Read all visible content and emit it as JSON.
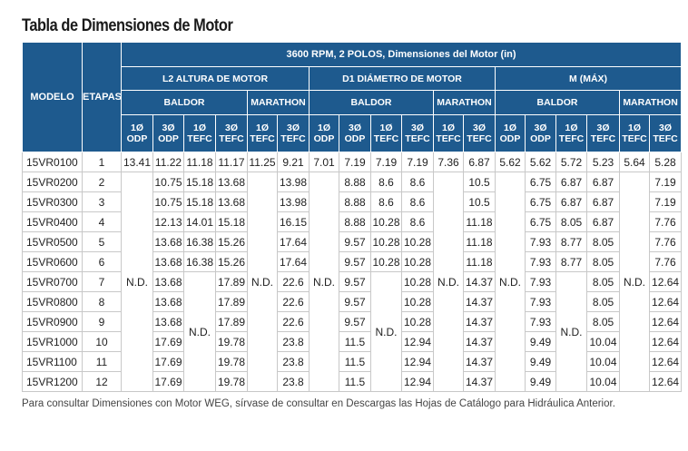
{
  "title": "Tabla de Dimensiones de Motor",
  "header": {
    "model_col": "MODELO",
    "stages_col": "ETAPAS",
    "top": "3600 RPM, 2 POLOS, Dimensiones del Motor (in)",
    "groups": [
      "L2 ALTURA DE MOTOR",
      "D1 DIÁMETRO DE MOTOR",
      "M (MÁX)"
    ],
    "brands": {
      "baldor": "BALDOR",
      "marathon": "MARATHON"
    },
    "phase_top": {
      "p1": "1Ø",
      "p3": "3Ø"
    },
    "types": {
      "odp": "ODP",
      "tefc": "TEFC"
    }
  },
  "nd": "N.D.",
  "rows": [
    {
      "model": "15VR0100",
      "stages": "1",
      "l2_baldor": [
        "13.41",
        "11.22",
        "11.18",
        "11.17"
      ],
      "l2_marathon": [
        "11.25",
        "9.21"
      ],
      "d1_baldor": [
        "7.01",
        "7.19",
        "7.19",
        "7.19"
      ],
      "d1_marathon": [
        "7.36",
        "6.87"
      ],
      "m_baldor": [
        "5.62",
        "5.62",
        "5.72",
        "5.23"
      ],
      "m_marathon": [
        "5.64",
        "5.28"
      ]
    },
    {
      "model": "15VR0200",
      "stages": "2",
      "l2_baldor": [
        "",
        "10.75",
        "15.18",
        "13.68"
      ],
      "l2_marathon": [
        "",
        "13.98"
      ],
      "d1_baldor": [
        "",
        "8.88",
        "8.6",
        "8.6"
      ],
      "d1_marathon": [
        "",
        "10.5"
      ],
      "m_baldor": [
        "",
        "6.75",
        "6.87",
        "6.87"
      ],
      "m_marathon": [
        "",
        "7.19"
      ]
    },
    {
      "model": "15VR0300",
      "stages": "3",
      "l2_baldor": [
        "",
        "10.75",
        "15.18",
        "13.68"
      ],
      "l2_marathon": [
        "",
        "13.98"
      ],
      "d1_baldor": [
        "",
        "8.88",
        "8.6",
        "8.6"
      ],
      "d1_marathon": [
        "",
        "10.5"
      ],
      "m_baldor": [
        "",
        "6.75",
        "6.87",
        "6.87"
      ],
      "m_marathon": [
        "",
        "7.19"
      ]
    },
    {
      "model": "15VR0400",
      "stages": "4",
      "l2_baldor": [
        "",
        "12.13",
        "14.01",
        "15.18"
      ],
      "l2_marathon": [
        "",
        "16.15"
      ],
      "d1_baldor": [
        "",
        "8.88",
        "10.28",
        "8.6"
      ],
      "d1_marathon": [
        "",
        "11.18"
      ],
      "m_baldor": [
        "",
        "6.75",
        "8.05",
        "6.87"
      ],
      "m_marathon": [
        "",
        "7.76"
      ]
    },
    {
      "model": "15VR0500",
      "stages": "5",
      "l2_baldor": [
        "",
        "13.68",
        "16.38",
        "15.26"
      ],
      "l2_marathon": [
        "",
        "17.64"
      ],
      "d1_baldor": [
        "",
        "9.57",
        "10.28",
        "10.28"
      ],
      "d1_marathon": [
        "",
        "11.18"
      ],
      "m_baldor": [
        "",
        "7.93",
        "8.77",
        "8.05"
      ],
      "m_marathon": [
        "",
        "7.76"
      ]
    },
    {
      "model": "15VR0600",
      "stages": "6",
      "l2_baldor": [
        "",
        "13.68",
        "16.38",
        "15.26"
      ],
      "l2_marathon": [
        "",
        "17.64"
      ],
      "d1_baldor": [
        "",
        "9.57",
        "10.28",
        "10.28"
      ],
      "d1_marathon": [
        "",
        "11.18"
      ],
      "m_baldor": [
        "",
        "7.93",
        "8.77",
        "8.05"
      ],
      "m_marathon": [
        "",
        "7.76"
      ]
    },
    {
      "model": "15VR0700",
      "stages": "7",
      "l2_baldor": [
        "",
        "13.68",
        "",
        "17.89"
      ],
      "l2_marathon": [
        "",
        "22.6"
      ],
      "d1_baldor": [
        "",
        "9.57",
        "",
        "10.28"
      ],
      "d1_marathon": [
        "",
        "14.37"
      ],
      "m_baldor": [
        "",
        "7.93",
        "",
        "8.05"
      ],
      "m_marathon": [
        "",
        "12.64"
      ]
    },
    {
      "model": "15VR0800",
      "stages": "8",
      "l2_baldor": [
        "",
        "13.68",
        "",
        "17.89"
      ],
      "l2_marathon": [
        "",
        "22.6"
      ],
      "d1_baldor": [
        "",
        "9.57",
        "",
        "10.28"
      ],
      "d1_marathon": [
        "",
        "14.37"
      ],
      "m_baldor": [
        "",
        "7.93",
        "",
        "8.05"
      ],
      "m_marathon": [
        "",
        "12.64"
      ]
    },
    {
      "model": "15VR0900",
      "stages": "9",
      "l2_baldor": [
        "",
        "13.68",
        "",
        "17.89"
      ],
      "l2_marathon": [
        "",
        "22.6"
      ],
      "d1_baldor": [
        "",
        "9.57",
        "",
        "10.28"
      ],
      "d1_marathon": [
        "",
        "14.37"
      ],
      "m_baldor": [
        "",
        "7.93",
        "",
        "8.05"
      ],
      "m_marathon": [
        "",
        "12.64"
      ]
    },
    {
      "model": "15VR1000",
      "stages": "10",
      "l2_baldor": [
        "",
        "17.69",
        "",
        "19.78"
      ],
      "l2_marathon": [
        "",
        "23.8"
      ],
      "d1_baldor": [
        "",
        "11.5",
        "",
        "12.94"
      ],
      "d1_marathon": [
        "",
        "14.37"
      ],
      "m_baldor": [
        "",
        "9.49",
        "",
        "10.04"
      ],
      "m_marathon": [
        "",
        "12.64"
      ]
    },
    {
      "model": "15VR1100",
      "stages": "11",
      "l2_baldor": [
        "",
        "17.69",
        "",
        "19.78"
      ],
      "l2_marathon": [
        "",
        "23.8"
      ],
      "d1_baldor": [
        "",
        "11.5",
        "",
        "12.94"
      ],
      "d1_marathon": [
        "",
        "14.37"
      ],
      "m_baldor": [
        "",
        "9.49",
        "",
        "10.04"
      ],
      "m_marathon": [
        "",
        "12.64"
      ]
    },
    {
      "model": "15VR1200",
      "stages": "12",
      "l2_baldor": [
        "",
        "17.69",
        "",
        "19.78"
      ],
      "l2_marathon": [
        "",
        "23.8"
      ],
      "d1_baldor": [
        "",
        "11.5",
        "",
        "12.94"
      ],
      "d1_marathon": [
        "",
        "14.37"
      ],
      "m_baldor": [
        "",
        "9.49",
        "",
        "10.04"
      ],
      "m_marathon": [
        "",
        "12.64"
      ]
    }
  ],
  "footnote": "Para consultar Dimensiones con Motor WEG, sírvase de consultar en Descargas las Hojas de Catálogo para Hidráulica Anterior."
}
